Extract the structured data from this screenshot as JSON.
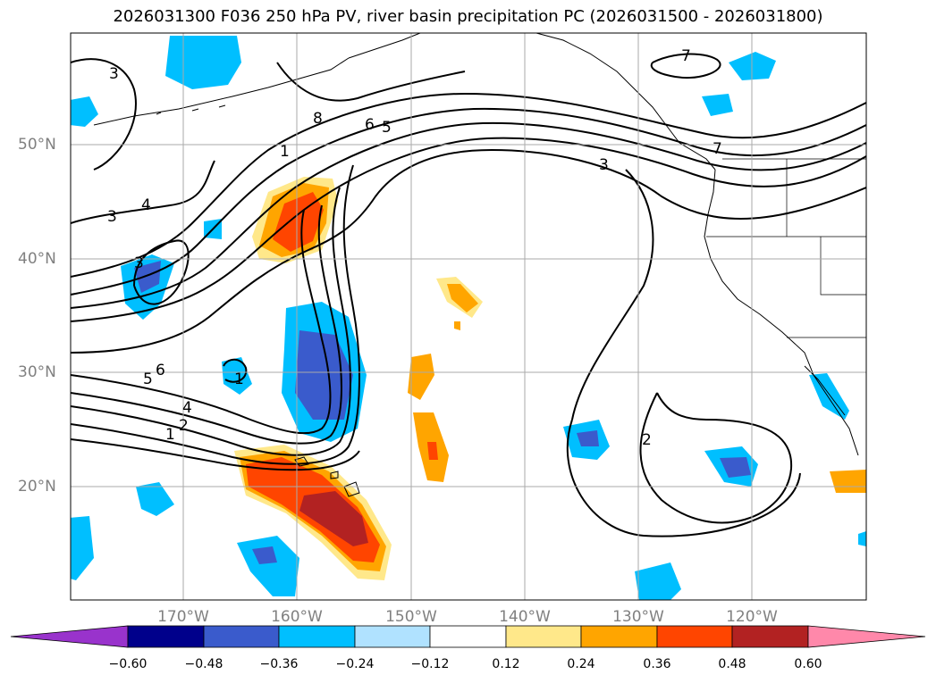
{
  "title": "2026031300 F036 250 hPa PV, river basin precipitation PC (2026031500 - 2026031800)",
  "axes": {
    "lat_labels": [
      "50°N",
      "40°N",
      "30°N",
      "20°N"
    ],
    "lon_labels": [
      "170°W",
      "160°W",
      "150°W",
      "140°W",
      "130°W",
      "120°W"
    ]
  },
  "contour_labels": [
    "3",
    "8",
    "6",
    "5",
    "1",
    "4",
    "3",
    "3",
    "6",
    "5",
    "4",
    "2",
    "1",
    "1",
    "7",
    "7",
    "3",
    "2"
  ],
  "colorbar": {
    "ticks": [
      "−0.60",
      "−0.48",
      "−0.36",
      "−0.24",
      "−0.12",
      "0.12",
      "0.24",
      "0.36",
      "0.48",
      "0.60"
    ],
    "colors": [
      "#9933cc",
      "#00008b",
      "#3a5bcc",
      "#00bfff",
      "#b0e2ff",
      "#ffffff",
      "#ffe88a",
      "#ffa500",
      "#ff4500",
      "#b22222",
      "#ff88aa"
    ]
  },
  "colors": {
    "grid": "#aaaaaa",
    "land_outline": "#000000",
    "tick_label": "#808080"
  }
}
